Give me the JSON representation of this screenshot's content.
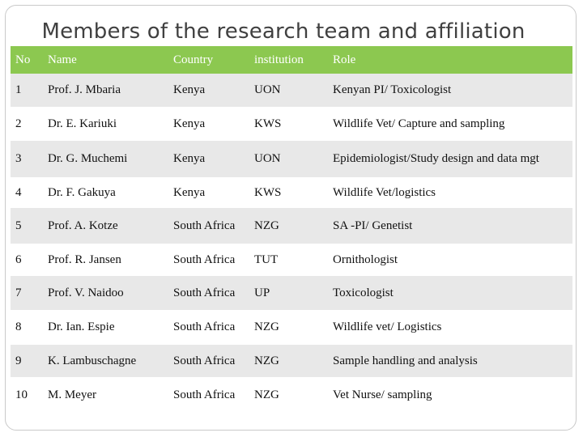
{
  "slide": {
    "title": "Members of the research team and affiliation"
  },
  "table": {
    "headers": [
      "No",
      "Name",
      "Country",
      "institution",
      "Role"
    ],
    "rows": [
      [
        "1",
        "Prof. J. Mbaria",
        "Kenya",
        "UON",
        "Kenyan PI/ Toxicologist"
      ],
      [
        "2",
        "Dr.  E. Kariuki",
        "Kenya",
        "KWS",
        "Wildlife Vet/ Capture and sampling"
      ],
      [
        "3",
        "Dr. G. Muchemi",
        "Kenya",
        "UON",
        "Epidemiologist/Study design and data mgt"
      ],
      [
        "4",
        "Dr. F. Gakuya",
        "Kenya",
        "KWS",
        "Wildlife Vet/logistics"
      ],
      [
        "5",
        "Prof.  A. Kotze",
        "South Africa",
        "NZG",
        "SA -PI/ Genetist"
      ],
      [
        "6",
        "Prof.  R. Jansen",
        "South Africa",
        "TUT",
        "Ornithologist"
      ],
      [
        "7",
        "Prof.  V. Naidoo",
        "South Africa",
        "UP",
        "Toxicologist"
      ],
      [
        "8",
        "Dr. Ian. Espie",
        "South Africa",
        "NZG",
        "Wildlife vet/ Logistics"
      ],
      [
        "9",
        "K. Lambuschagne",
        "South Africa",
        "NZG",
        "Sample handling and analysis"
      ],
      [
        "10",
        "M. Meyer",
        "South Africa",
        "NZG",
        "Vet Nurse/ sampling"
      ]
    ]
  },
  "colors": {
    "header_bg": "#8cc850",
    "row_shade": "#e8e8e8"
  }
}
